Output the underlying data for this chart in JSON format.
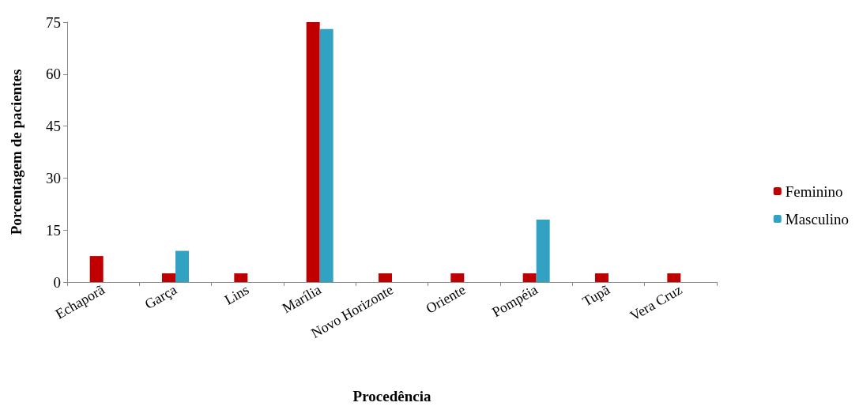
{
  "chart_data": {
    "type": "bar",
    "xlabel": "Procedência",
    "ylabel": "Porcentagem de pacientes",
    "categories": [
      "Echaporã",
      "Garça",
      "Lins",
      "Marília",
      "Novo Horizonte",
      "Oriente",
      "Pompéia",
      "Tupã",
      "Vera Cruz"
    ],
    "series": [
      {
        "name": "Feminino",
        "color": "#c00000",
        "values": [
          7.5,
          2.5,
          2.5,
          75,
          2.5,
          2.5,
          2.5,
          2.5,
          2.5
        ]
      },
      {
        "name": "Masculino",
        "color": "#31a2c2",
        "values": [
          null,
          9,
          null,
          73,
          null,
          null,
          18,
          null,
          null
        ]
      }
    ],
    "ylim": [
      0,
      75
    ],
    "yticks": [
      0,
      15,
      30,
      45,
      60,
      75
    ],
    "grid": false,
    "legend": "right"
  }
}
